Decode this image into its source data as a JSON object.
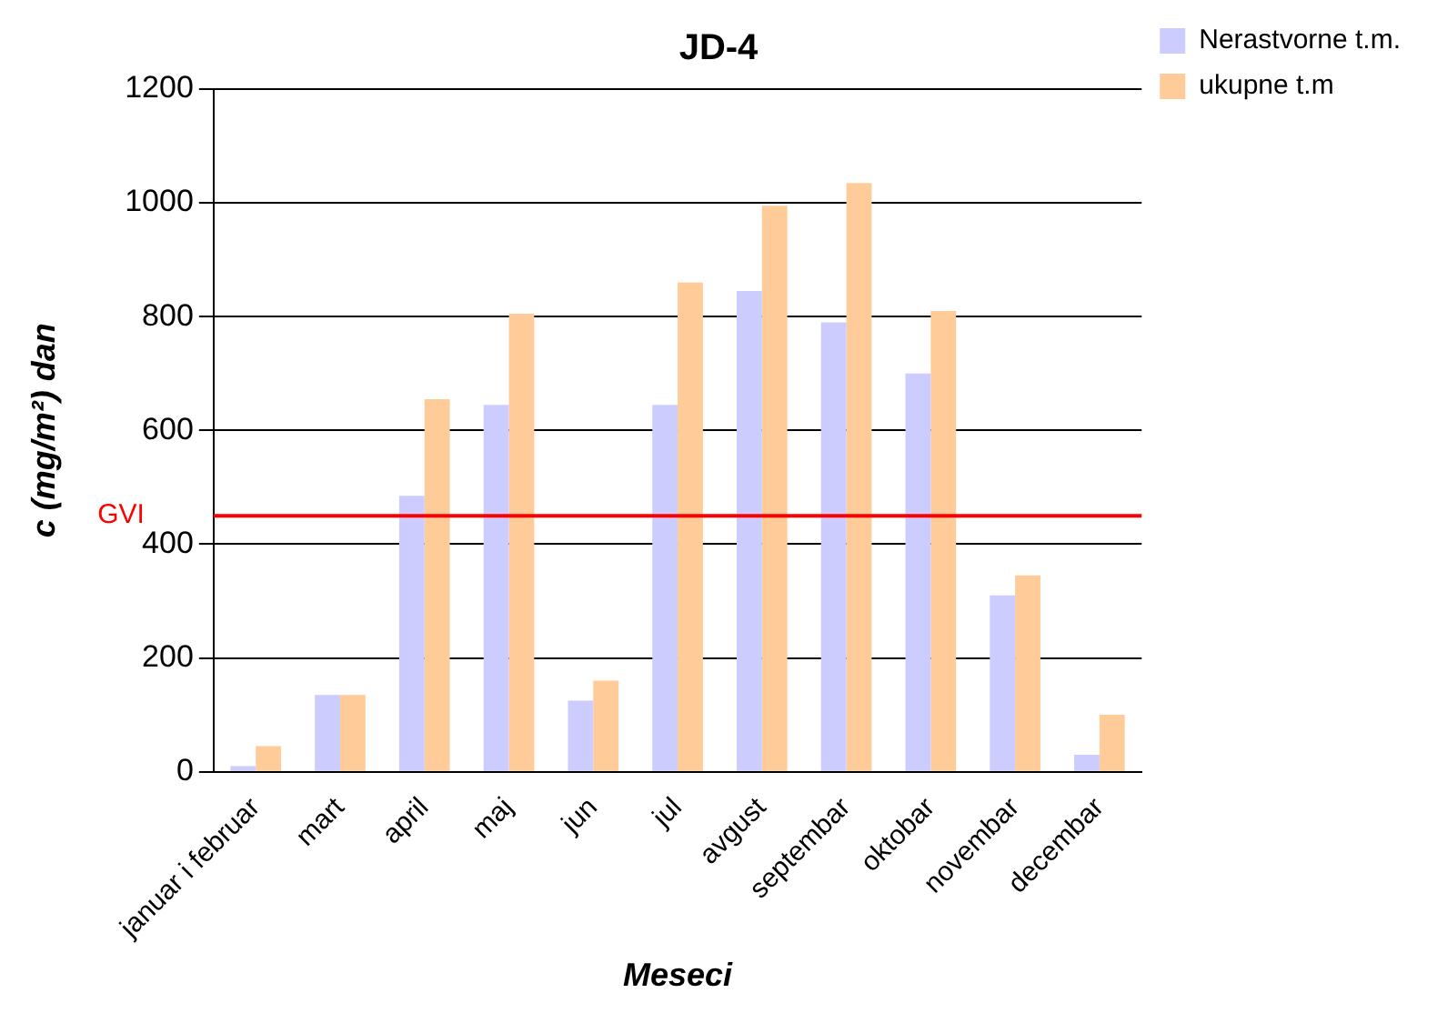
{
  "chart_data": {
    "type": "bar",
    "title": "JD-4",
    "xlabel": "Meseci",
    "ylabel": "c (mg/m²) dan",
    "categories": [
      "januar i februar",
      "mart",
      "april",
      "maj",
      "jun",
      "jul",
      "avgust",
      "septembar",
      "oktobar",
      "novembar",
      "decembar"
    ],
    "series": [
      {
        "name": "Nerastvorne t.m.",
        "color": "#ccccff",
        "values": [
          10,
          135,
          485,
          645,
          125,
          645,
          845,
          790,
          700,
          310,
          30
        ]
      },
      {
        "name": "ukupne t.m",
        "color": "#ffcc99",
        "values": [
          45,
          135,
          655,
          805,
          160,
          860,
          995,
          1035,
          810,
          345,
          100
        ]
      }
    ],
    "ylim": [
      0,
      1200
    ],
    "yticks": [
      0,
      200,
      400,
      600,
      800,
      1000,
      1200
    ],
    "grid": "y",
    "legend": "top right",
    "ref_lines": [
      {
        "axis": "y",
        "value": 450,
        "label": "GVI",
        "color": "#ff0000"
      }
    ]
  }
}
